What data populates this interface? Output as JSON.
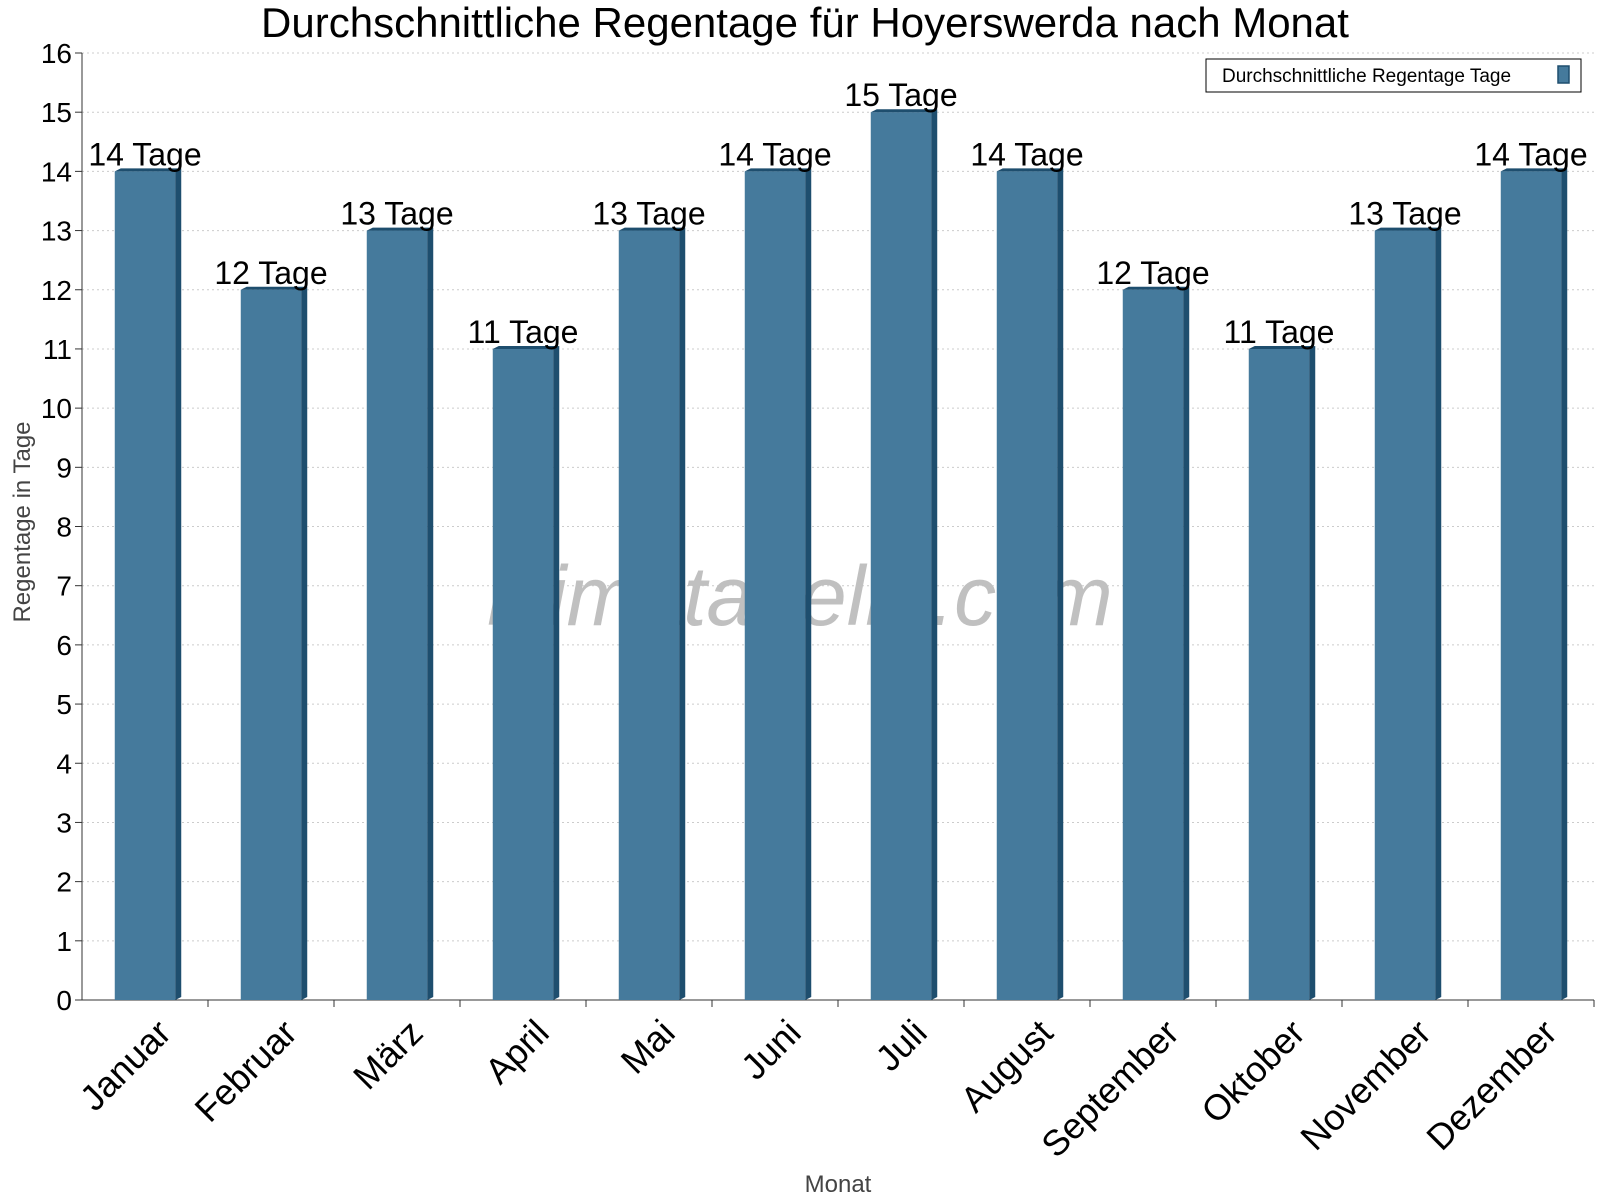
{
  "chart_data": {
    "type": "bar",
    "title": "Durchschnittliche Regentage für Hoyerswerda nach Monat",
    "xlabel": "Monat",
    "ylabel": "Regentage in Tage",
    "categories": [
      "Januar",
      "Februar",
      "März",
      "April",
      "Mai",
      "Juni",
      "Juli",
      "August",
      "September",
      "Oktober",
      "November",
      "Dezember"
    ],
    "series": [
      {
        "name": "Durchschnittliche Regentage Tage",
        "values": [
          14,
          12,
          13,
          11,
          13,
          14,
          15,
          14,
          12,
          11,
          13,
          14
        ],
        "data_labels": [
          "14 Tage",
          "12 Tage",
          "13 Tage",
          "11 Tage",
          "13 Tage",
          "14 Tage",
          "15 Tage",
          "14 Tage",
          "12 Tage",
          "11 Tage",
          "13 Tage",
          "14 Tage"
        ]
      }
    ],
    "ylim": [
      0,
      16
    ],
    "yticks": [
      "0",
      "1",
      "2",
      "3",
      "4",
      "5",
      "6",
      "7",
      "8",
      "9",
      "10",
      "11",
      "12",
      "13",
      "14",
      "15",
      "16"
    ],
    "grid": true,
    "legend_position": "top-right",
    "watermark": "klimatabelle.com"
  },
  "colors": {
    "bar_front": "#457a9c",
    "bar_side": "#1e4e6e",
    "grid": "#cccccc",
    "axis": "#333333",
    "text": "#000000",
    "axis_title": "#444444",
    "watermark": "#c0c0c0"
  }
}
